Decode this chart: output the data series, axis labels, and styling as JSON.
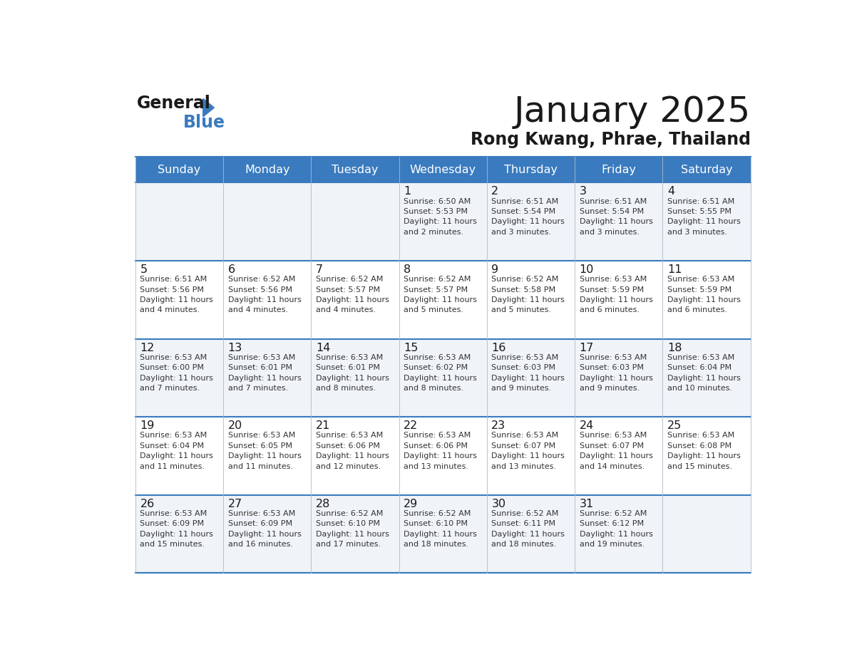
{
  "title": "January 2025",
  "subtitle": "Rong Kwang, Phrae, Thailand",
  "days_of_week": [
    "Sunday",
    "Monday",
    "Tuesday",
    "Wednesday",
    "Thursday",
    "Friday",
    "Saturday"
  ],
  "header_bg": "#3a7bbf",
  "header_text": "#ffffff",
  "cell_bg_light": "#f0f4f8",
  "cell_bg_white": "#ffffff",
  "grid_line_color": "#3a7bbf",
  "title_color": "#1a1a1a",
  "subtitle_color": "#1a1a1a",
  "day_number_color": "#1a1a1a",
  "cell_text_color": "#333333",
  "weeks": [
    {
      "days": [
        {
          "day": null,
          "sunrise": null,
          "sunset": null,
          "daylight": null
        },
        {
          "day": null,
          "sunrise": null,
          "sunset": null,
          "daylight": null
        },
        {
          "day": null,
          "sunrise": null,
          "sunset": null,
          "daylight": null
        },
        {
          "day": 1,
          "sunrise": "6:50 AM",
          "sunset": "5:53 PM",
          "daylight": "11 hours\nand 2 minutes."
        },
        {
          "day": 2,
          "sunrise": "6:51 AM",
          "sunset": "5:54 PM",
          "daylight": "11 hours\nand 3 minutes."
        },
        {
          "day": 3,
          "sunrise": "6:51 AM",
          "sunset": "5:54 PM",
          "daylight": "11 hours\nand 3 minutes."
        },
        {
          "day": 4,
          "sunrise": "6:51 AM",
          "sunset": "5:55 PM",
          "daylight": "11 hours\nand 3 minutes."
        }
      ]
    },
    {
      "days": [
        {
          "day": 5,
          "sunrise": "6:51 AM",
          "sunset": "5:56 PM",
          "daylight": "11 hours\nand 4 minutes."
        },
        {
          "day": 6,
          "sunrise": "6:52 AM",
          "sunset": "5:56 PM",
          "daylight": "11 hours\nand 4 minutes."
        },
        {
          "day": 7,
          "sunrise": "6:52 AM",
          "sunset": "5:57 PM",
          "daylight": "11 hours\nand 4 minutes."
        },
        {
          "day": 8,
          "sunrise": "6:52 AM",
          "sunset": "5:57 PM",
          "daylight": "11 hours\nand 5 minutes."
        },
        {
          "day": 9,
          "sunrise": "6:52 AM",
          "sunset": "5:58 PM",
          "daylight": "11 hours\nand 5 minutes."
        },
        {
          "day": 10,
          "sunrise": "6:53 AM",
          "sunset": "5:59 PM",
          "daylight": "11 hours\nand 6 minutes."
        },
        {
          "day": 11,
          "sunrise": "6:53 AM",
          "sunset": "5:59 PM",
          "daylight": "11 hours\nand 6 minutes."
        }
      ]
    },
    {
      "days": [
        {
          "day": 12,
          "sunrise": "6:53 AM",
          "sunset": "6:00 PM",
          "daylight": "11 hours\nand 7 minutes."
        },
        {
          "day": 13,
          "sunrise": "6:53 AM",
          "sunset": "6:01 PM",
          "daylight": "11 hours\nand 7 minutes."
        },
        {
          "day": 14,
          "sunrise": "6:53 AM",
          "sunset": "6:01 PM",
          "daylight": "11 hours\nand 8 minutes."
        },
        {
          "day": 15,
          "sunrise": "6:53 AM",
          "sunset": "6:02 PM",
          "daylight": "11 hours\nand 8 minutes."
        },
        {
          "day": 16,
          "sunrise": "6:53 AM",
          "sunset": "6:03 PM",
          "daylight": "11 hours\nand 9 minutes."
        },
        {
          "day": 17,
          "sunrise": "6:53 AM",
          "sunset": "6:03 PM",
          "daylight": "11 hours\nand 9 minutes."
        },
        {
          "day": 18,
          "sunrise": "6:53 AM",
          "sunset": "6:04 PM",
          "daylight": "11 hours\nand 10 minutes."
        }
      ]
    },
    {
      "days": [
        {
          "day": 19,
          "sunrise": "6:53 AM",
          "sunset": "6:04 PM",
          "daylight": "11 hours\nand 11 minutes."
        },
        {
          "day": 20,
          "sunrise": "6:53 AM",
          "sunset": "6:05 PM",
          "daylight": "11 hours\nand 11 minutes."
        },
        {
          "day": 21,
          "sunrise": "6:53 AM",
          "sunset": "6:06 PM",
          "daylight": "11 hours\nand 12 minutes."
        },
        {
          "day": 22,
          "sunrise": "6:53 AM",
          "sunset": "6:06 PM",
          "daylight": "11 hours\nand 13 minutes."
        },
        {
          "day": 23,
          "sunrise": "6:53 AM",
          "sunset": "6:07 PM",
          "daylight": "11 hours\nand 13 minutes."
        },
        {
          "day": 24,
          "sunrise": "6:53 AM",
          "sunset": "6:07 PM",
          "daylight": "11 hours\nand 14 minutes."
        },
        {
          "day": 25,
          "sunrise": "6:53 AM",
          "sunset": "6:08 PM",
          "daylight": "11 hours\nand 15 minutes."
        }
      ]
    },
    {
      "days": [
        {
          "day": 26,
          "sunrise": "6:53 AM",
          "sunset": "6:09 PM",
          "daylight": "11 hours\nand 15 minutes."
        },
        {
          "day": 27,
          "sunrise": "6:53 AM",
          "sunset": "6:09 PM",
          "daylight": "11 hours\nand 16 minutes."
        },
        {
          "day": 28,
          "sunrise": "6:52 AM",
          "sunset": "6:10 PM",
          "daylight": "11 hours\nand 17 minutes."
        },
        {
          "day": 29,
          "sunrise": "6:52 AM",
          "sunset": "6:10 PM",
          "daylight": "11 hours\nand 18 minutes."
        },
        {
          "day": 30,
          "sunrise": "6:52 AM",
          "sunset": "6:11 PM",
          "daylight": "11 hours\nand 18 minutes."
        },
        {
          "day": 31,
          "sunrise": "6:52 AM",
          "sunset": "6:12 PM",
          "daylight": "11 hours\nand 19 minutes."
        },
        {
          "day": null,
          "sunrise": null,
          "sunset": null,
          "daylight": null
        }
      ]
    }
  ]
}
